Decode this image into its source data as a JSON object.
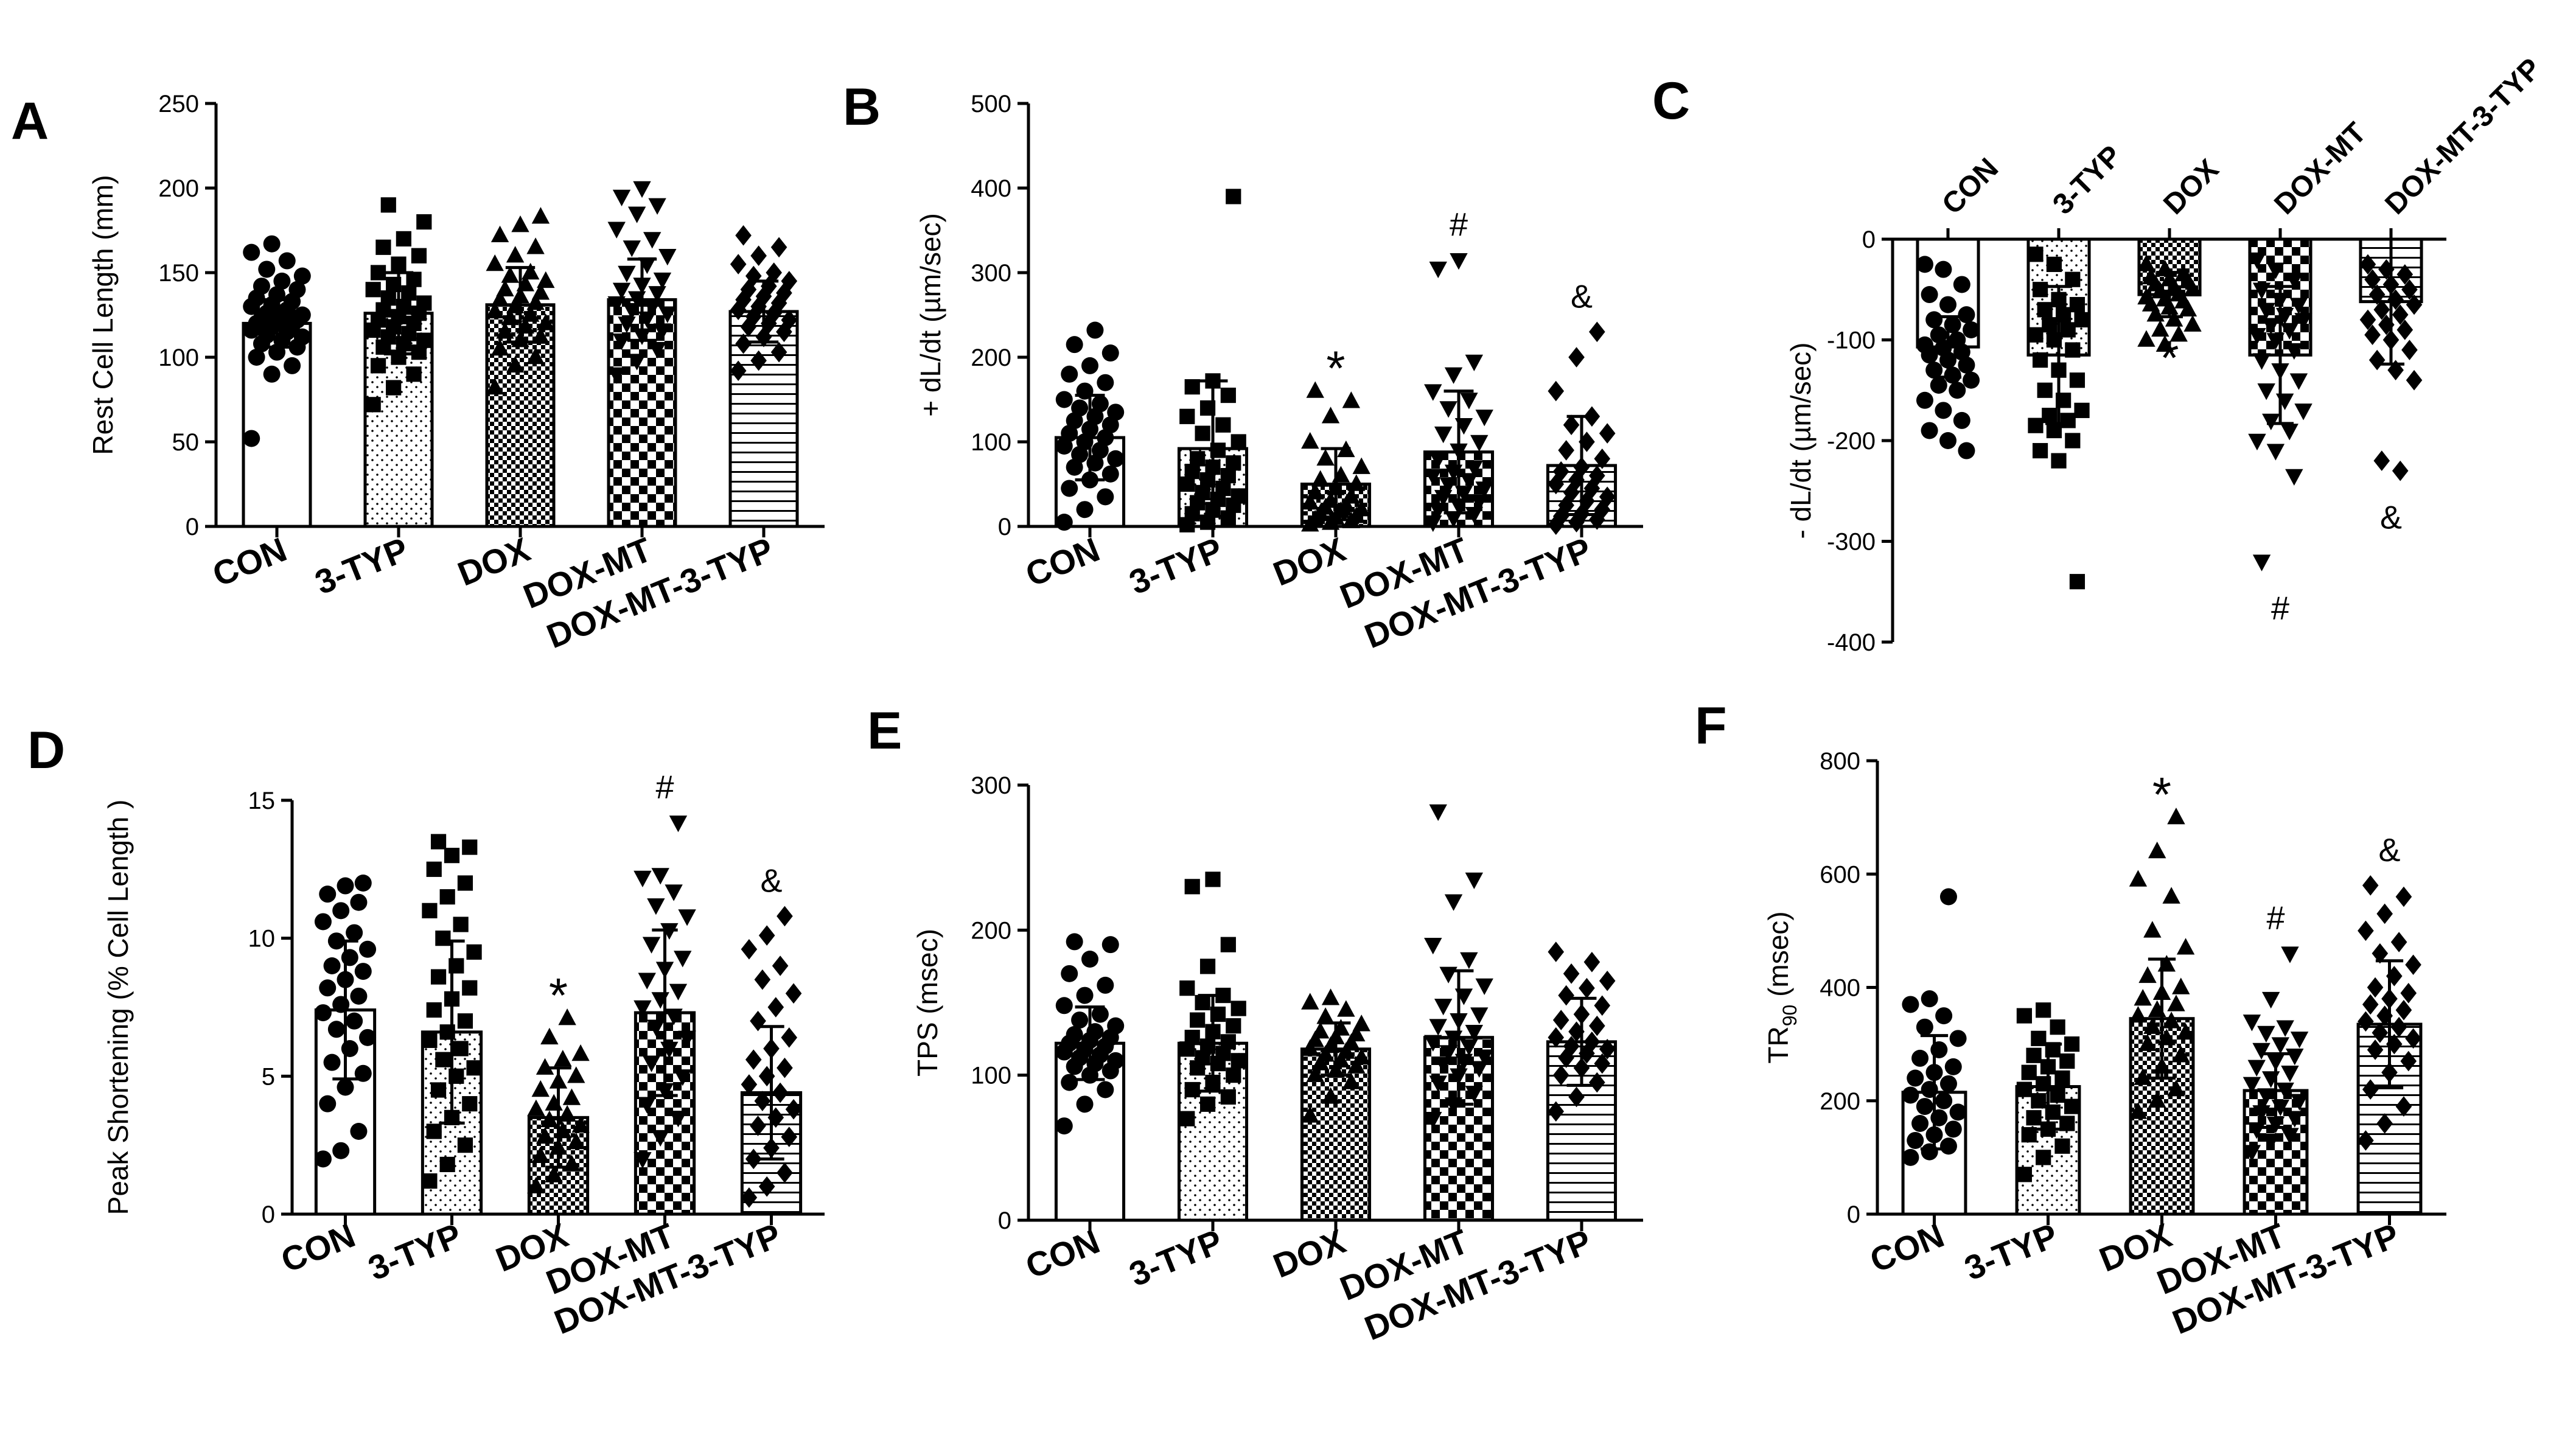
{
  "colors": {
    "ink": "#000000",
    "background": "#ffffff"
  },
  "categories": [
    "CON",
    "3-TYP",
    "DOX",
    "DOX-MT",
    "DOX-MT-3-TYP"
  ],
  "chart_data": [
    {
      "id": "A",
      "panel_label": "A",
      "type": "bar",
      "ylabel": "Rest Cell Length (mm)",
      "ylim": [
        0,
        250
      ],
      "yticks": [
        0,
        50,
        100,
        150,
        200,
        250
      ],
      "categories": [
        "CON",
        "3-TYP",
        "DOX",
        "DOX-MT",
        "DOX-MT-3-TYP"
      ],
      "values": [
        120,
        126,
        131,
        134,
        127
      ],
      "errors": [
        14,
        24,
        22,
        24,
        18
      ],
      "annotations": [
        "",
        "",
        "",
        "",
        ""
      ],
      "points": [
        [
          52,
          90,
          95,
          100,
          103,
          106,
          108,
          110,
          112,
          113,
          115,
          116,
          118,
          119,
          120,
          121,
          122,
          123,
          124,
          125,
          126,
          128,
          130,
          131,
          133,
          135,
          137,
          140,
          142,
          145,
          148,
          152,
          157,
          162,
          167
        ],
        [
          72,
          82,
          90,
          95,
          100,
          103,
          106,
          108,
          110,
          112,
          114,
          116,
          118,
          120,
          122,
          124,
          126,
          128,
          130,
          132,
          135,
          138,
          140,
          143,
          146,
          150,
          155,
          160,
          165,
          170,
          180,
          190
        ],
        [
          82,
          95,
          100,
          105,
          110,
          112,
          115,
          118,
          120,
          123,
          125,
          127,
          130,
          132,
          134,
          136,
          138,
          140,
          143,
          145,
          148,
          150,
          155,
          160,
          165,
          172,
          178,
          183
        ],
        [
          90,
          98,
          105,
          110,
          113,
          116,
          120,
          123,
          126,
          128,
          130,
          132,
          135,
          138,
          140,
          143,
          146,
          150,
          155,
          160,
          165,
          170,
          176,
          185,
          190,
          195,
          200
        ],
        [
          92,
          98,
          103,
          108,
          112,
          115,
          118,
          120,
          122,
          124,
          126,
          128,
          130,
          132,
          134,
          136,
          138,
          140,
          142,
          145,
          148,
          150,
          155,
          160,
          165,
          172
        ]
      ]
    },
    {
      "id": "B",
      "panel_label": "B",
      "type": "bar",
      "ylabel": "+ dL/dt (µm/sec)",
      "ylim": [
        0,
        500
      ],
      "yticks": [
        0,
        100,
        200,
        300,
        400,
        500
      ],
      "categories": [
        "CON",
        "3-TYP",
        "DOX",
        "DOX-MT",
        "DOX-MT-3-TYP"
      ],
      "values": [
        105,
        92,
        50,
        88,
        72
      ],
      "errors": [
        50,
        80,
        42,
        72,
        58
      ],
      "annotations": [
        "",
        "",
        "*",
        "#",
        "&"
      ],
      "points": [
        [
          5,
          20,
          35,
          45,
          55,
          62,
          70,
          75,
          80,
          85,
          90,
          95,
          100,
          105,
          110,
          115,
          120,
          125,
          130,
          135,
          140,
          145,
          150,
          160,
          170,
          180,
          190,
          205,
          215,
          232
        ],
        [
          2,
          5,
          10,
          15,
          20,
          25,
          28,
          32,
          36,
          40,
          45,
          50,
          55,
          60,
          65,
          70,
          75,
          80,
          90,
          100,
          110,
          120,
          130,
          140,
          155,
          165,
          172,
          390
        ],
        [
          2,
          4,
          6,
          8,
          10,
          12,
          15,
          18,
          20,
          22,
          25,
          28,
          30,
          35,
          40,
          45,
          50,
          55,
          60,
          70,
          80,
          90,
          100,
          130,
          148,
          160
        ],
        [
          5,
          10,
          15,
          20,
          25,
          30,
          35,
          40,
          45,
          50,
          55,
          60,
          65,
          70,
          80,
          90,
          100,
          110,
          120,
          130,
          140,
          150,
          160,
          180,
          195,
          305,
          315
        ],
        [
          2,
          5,
          8,
          12,
          15,
          20,
          25,
          30,
          35,
          40,
          45,
          50,
          55,
          60,
          65,
          70,
          80,
          90,
          100,
          110,
          120,
          130,
          160,
          200,
          230
        ]
      ]
    },
    {
      "id": "C",
      "panel_label": "C",
      "type": "bar",
      "ylabel": "- dL/dt (µm/sec)",
      "ylim": [
        -400,
        0
      ],
      "yticks": [
        0,
        -100,
        -200,
        -300,
        -400
      ],
      "categories": [
        "CON",
        "3-TYP",
        "DOX",
        "DOX-MT",
        "DOX-MT-3-TYP"
      ],
      "values": [
        -107,
        -115,
        -55,
        -115,
        -62
      ],
      "errors": [
        30,
        68,
        22,
        68,
        62
      ],
      "annotations": [
        "",
        "",
        "*",
        "#",
        "&"
      ],
      "points": [
        [
          -25,
          -30,
          -45,
          -55,
          -65,
          -75,
          -80,
          -85,
          -90,
          -95,
          -100,
          -105,
          -108,
          -112,
          -115,
          -120,
          -125,
          -130,
          -135,
          -140,
          -145,
          -150,
          -160,
          -170,
          -180,
          -190,
          -200,
          -210
        ],
        [
          -15,
          -25,
          -40,
          -50,
          -60,
          -65,
          -70,
          -75,
          -80,
          -85,
          -90,
          -95,
          -100,
          -110,
          -120,
          -130,
          -140,
          -150,
          -160,
          -170,
          -175,
          -180,
          -185,
          -190,
          -200,
          -210,
          -220,
          -340
        ],
        [
          -25,
          -30,
          -35,
          -38,
          -40,
          -42,
          -45,
          -48,
          -50,
          -52,
          -55,
          -58,
          -60,
          -62,
          -65,
          -68,
          -70,
          -75,
          -80,
          -85,
          -90,
          -95,
          -100,
          -105
        ],
        [
          -20,
          -30,
          -40,
          -50,
          -60,
          -65,
          -70,
          -75,
          -80,
          -85,
          -90,
          -95,
          -100,
          -110,
          -120,
          -130,
          -140,
          -150,
          -160,
          -170,
          -180,
          -190,
          -200,
          -210,
          -235,
          -320
        ],
        [
          -25,
          -30,
          -35,
          -40,
          -45,
          -50,
          -55,
          -60,
          -65,
          -70,
          -75,
          -80,
          -85,
          -90,
          -95,
          -100,
          -110,
          -120,
          -130,
          -140,
          -220,
          -230
        ]
      ]
    },
    {
      "id": "D",
      "panel_label": "D",
      "type": "bar",
      "ylabel": "Peak Shortening (% Cell Length )",
      "ylim": [
        0,
        15
      ],
      "yticks": [
        0,
        5,
        10,
        15
      ],
      "categories": [
        "CON",
        "3-TYP",
        "DOX",
        "DOX-MT",
        "DOX-MT-3-TYP"
      ],
      "values": [
        7.4,
        6.6,
        3.5,
        7.3,
        4.4
      ],
      "errors": [
        2.5,
        3.3,
        1.8,
        3.0,
        2.4
      ],
      "annotations": [
        "",
        "",
        "*",
        "#",
        "&"
      ],
      "points": [
        [
          2.0,
          2.3,
          3.0,
          4.0,
          4.6,
          5.1,
          5.5,
          6.0,
          6.4,
          6.7,
          7.0,
          7.3,
          7.6,
          7.9,
          8.2,
          8.5,
          8.8,
          9.0,
          9.3,
          9.6,
          9.9,
          10.2,
          10.6,
          11.0,
          11.3,
          11.6,
          11.9,
          12.0
        ],
        [
          1.2,
          1.8,
          2.5,
          3.0,
          3.5,
          4.0,
          4.5,
          5.0,
          5.3,
          5.6,
          6.0,
          6.3,
          6.6,
          7.0,
          7.4,
          7.8,
          8.2,
          8.6,
          9.0,
          9.5,
          10.0,
          10.5,
          11.0,
          11.5,
          12.0,
          12.5,
          13.0,
          13.3,
          13.5
        ],
        [
          1.0,
          1.4,
          1.8,
          2.1,
          2.4,
          2.6,
          2.8,
          3.0,
          3.2,
          3.4,
          3.6,
          3.8,
          4.0,
          4.2,
          4.5,
          4.8,
          5.0,
          5.3,
          5.6,
          5.8,
          6.4,
          7.1
        ],
        [
          2.0,
          2.8,
          3.5,
          4.0,
          4.5,
          5.0,
          5.5,
          6.0,
          6.4,
          6.8,
          7.2,
          7.5,
          7.8,
          8.1,
          8.5,
          8.9,
          9.3,
          9.8,
          10.3,
          10.8,
          11.2,
          11.7,
          12.2,
          12.3,
          14.2
        ],
        [
          0.6,
          1.0,
          1.5,
          2.0,
          2.4,
          2.8,
          3.2,
          3.5,
          3.8,
          4.1,
          4.4,
          4.7,
          5.0,
          5.3,
          5.6,
          6.0,
          6.4,
          7.0,
          7.5,
          8.0,
          8.5,
          9.0,
          9.6,
          10.1,
          10.8
        ]
      ]
    },
    {
      "id": "E",
      "panel_label": "E",
      "type": "bar",
      "ylabel": "TPS (msec)",
      "ylim": [
        0,
        300
      ],
      "yticks": [
        0,
        100,
        200,
        300
      ],
      "categories": [
        "CON",
        "3-TYP",
        "DOX",
        "DOX-MT",
        "DOX-MT-3-TYP"
      ],
      "values": [
        122,
        122,
        118,
        126,
        123
      ],
      "errors": [
        25,
        33,
        18,
        46,
        30
      ],
      "annotations": [
        "",
        "",
        "",
        "",
        ""
      ],
      "points": [
        [
          65,
          80,
          90,
          95,
          100,
          103,
          106,
          108,
          110,
          112,
          114,
          116,
          118,
          120,
          122,
          124,
          126,
          128,
          130,
          134,
          138,
          142,
          148,
          155,
          162,
          170,
          180,
          190,
          192
        ],
        [
          70,
          80,
          85,
          90,
          95,
          100,
          105,
          108,
          110,
          112,
          115,
          118,
          120,
          123,
          126,
          130,
          134,
          138,
          142,
          146,
          150,
          155,
          160,
          175,
          190,
          230,
          235
        ],
        [
          72,
          85,
          95,
          100,
          103,
          106,
          108,
          110,
          112,
          114,
          116,
          118,
          120,
          122,
          124,
          126,
          128,
          130,
          132,
          135,
          140,
          145,
          150,
          153
        ],
        [
          70,
          80,
          88,
          95,
          100,
          105,
          108,
          110,
          113,
          116,
          120,
          123,
          126,
          130,
          134,
          138,
          142,
          148,
          155,
          162,
          170,
          180,
          190,
          220,
          235,
          282
        ],
        [
          75,
          85,
          95,
          100,
          105,
          108,
          112,
          115,
          118,
          120,
          123,
          126,
          130,
          134,
          138,
          142,
          148,
          155,
          160,
          165,
          170,
          178,
          185
        ]
      ]
    },
    {
      "id": "F",
      "panel_label": "F",
      "type": "bar",
      "ylabel": "TR90 (msec)",
      "ylabel_main": "TR",
      "ylabel_sub": "90",
      "ylabel_unit": " (msec)",
      "ylim": [
        0,
        800
      ],
      "yticks": [
        0,
        200,
        400,
        600,
        800
      ],
      "categories": [
        "CON",
        "3-TYP",
        "DOX",
        "DOX-MT",
        "DOX-MT-3-TYP"
      ],
      "values": [
        215,
        225,
        345,
        218,
        335
      ],
      "errors": [
        100,
        75,
        105,
        65,
        112
      ],
      "annotations": [
        "",
        "",
        "*",
        "#",
        "&"
      ],
      "points": [
        [
          100,
          110,
          120,
          130,
          140,
          150,
          160,
          170,
          180,
          190,
          200,
          210,
          220,
          230,
          240,
          250,
          260,
          275,
          290,
          310,
          330,
          350,
          370,
          380,
          560
        ],
        [
          70,
          100,
          120,
          140,
          150,
          160,
          170,
          180,
          190,
          200,
          210,
          220,
          230,
          240,
          250,
          260,
          270,
          280,
          290,
          300,
          310,
          330,
          350,
          360
        ],
        [
          180,
          200,
          220,
          240,
          260,
          280,
          300,
          310,
          320,
          330,
          340,
          350,
          360,
          370,
          380,
          390,
          400,
          420,
          440,
          470,
          500,
          560,
          590,
          640,
          700
        ],
        [
          110,
          130,
          140,
          150,
          160,
          170,
          180,
          190,
          200,
          210,
          220,
          230,
          240,
          250,
          260,
          270,
          280,
          290,
          300,
          310,
          320,
          330,
          340,
          380,
          460
        ],
        [
          130,
          160,
          190,
          220,
          250,
          270,
          290,
          300,
          310,
          320,
          330,
          340,
          350,
          360,
          370,
          380,
          390,
          400,
          420,
          440,
          460,
          480,
          500,
          530,
          560,
          580
        ]
      ]
    }
  ]
}
